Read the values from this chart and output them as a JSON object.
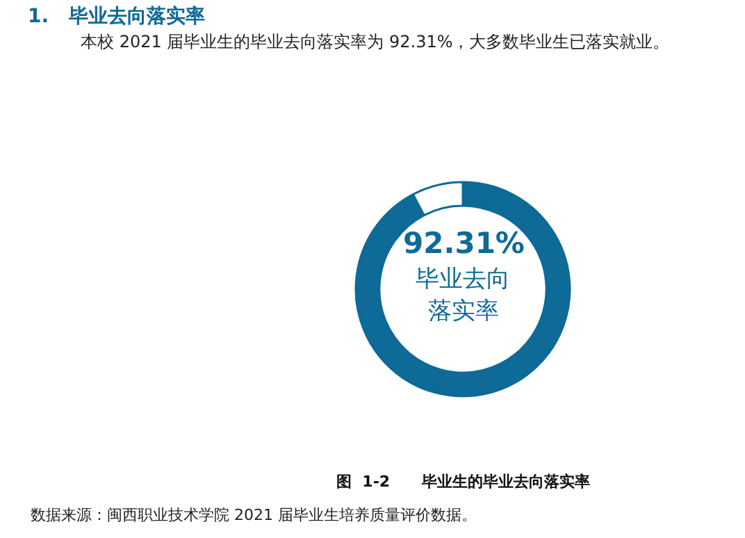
{
  "chart_data": {
    "type": "donut",
    "title": "1.   毕业去向落实率",
    "subtitle": "本校 2021 届毕业生的毕业去向落实率为 92.31%，大多数毕业生已落实就业。",
    "categories": [
      null,
      null
    ],
    "values": [
      92.31,
      7.69
    ],
    "colors": [
      "#0e6a97",
      "#ffffff"
    ],
    "annotations": [
      "92.31%",
      "毕业去向",
      "落实率",
      "图  1-2      毕业生的毕业去向落实率",
      "数据来源：闽西职业技术学院 2021 届毕业生培养质量评价数据。"
    ],
    "legend": false
  }
}
